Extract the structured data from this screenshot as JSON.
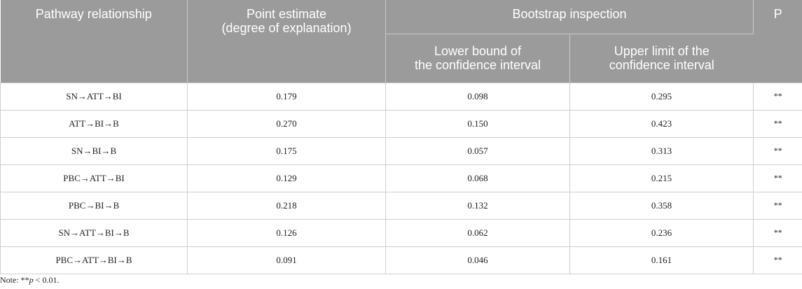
{
  "table": {
    "headers": {
      "pathway": "Pathway relationship",
      "point_estimate_line1": "Point estimate",
      "point_estimate_line2": "(degree of explanation)",
      "bootstrap": "Bootstrap inspection",
      "lower_line1": "Lower bound of",
      "lower_line2": "the confidence interval",
      "upper_line1": "Upper limit of the",
      "upper_line2": "confidence interval",
      "p": "P"
    },
    "rows": [
      {
        "pathway": "SN→ATT→BI",
        "estimate": "0.179",
        "lower": "0.098",
        "upper": "0.295",
        "p": "**"
      },
      {
        "pathway": "ATT→BI→B",
        "estimate": "0.270",
        "lower": "0.150",
        "upper": "0.423",
        "p": "**"
      },
      {
        "pathway": "SN→BI→B",
        "estimate": "0.175",
        "lower": "0.057",
        "upper": "0.313",
        "p": "**"
      },
      {
        "pathway": "PBC→ATT→BI",
        "estimate": "0.129",
        "lower": "0.068",
        "upper": "0.215",
        "p": "**"
      },
      {
        "pathway": "PBC→BI→B",
        "estimate": "0.218",
        "lower": "0.132",
        "upper": "0.358",
        "p": "**"
      },
      {
        "pathway": "SN→ATT→BI→B",
        "estimate": "0.126",
        "lower": "0.062",
        "upper": "0.236",
        "p": "**"
      },
      {
        "pathway": "PBC→ATT→BI→B",
        "estimate": "0.091",
        "lower": "0.046",
        "upper": "0.161",
        "p": "**"
      }
    ]
  },
  "note": {
    "prefix": "Note: **",
    "var": "p",
    "suffix": " < 0.01."
  }
}
